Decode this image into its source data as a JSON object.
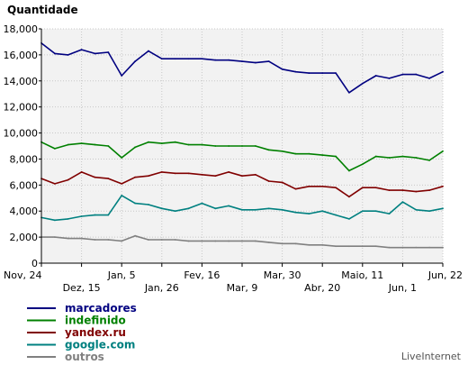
{
  "chart_data": {
    "type": "line",
    "title": "Quantidade",
    "xlabel": "",
    "ylabel": "",
    "ylim": [
      0,
      18000
    ],
    "yticks": [
      0,
      2000,
      4000,
      6000,
      8000,
      10000,
      12000,
      14000,
      16000,
      18000
    ],
    "ytick_labels": [
      "0",
      "2,000",
      "4,000",
      "6,000",
      "8,000",
      "10,000",
      "12,000",
      "14,000",
      "16,000",
      "18,000"
    ],
    "xlim": [
      0,
      30
    ],
    "x_ticks": [
      {
        "x": 0,
        "label": "Nov, 24",
        "row": 0
      },
      {
        "x": 3,
        "label": "Dez, 15",
        "row": 1
      },
      {
        "x": 6,
        "label": "Jan, 5",
        "row": 0
      },
      {
        "x": 9,
        "label": "Jan, 26",
        "row": 1
      },
      {
        "x": 12,
        "label": "Fev, 16",
        "row": 0
      },
      {
        "x": 15,
        "label": "Mar, 9",
        "row": 1
      },
      {
        "x": 18,
        "label": "Mar, 30",
        "row": 0
      },
      {
        "x": 21,
        "label": "Abr, 20",
        "row": 1
      },
      {
        "x": 24,
        "label": "Maio, 11",
        "row": 0
      },
      {
        "x": 27,
        "label": "Jun, 1",
        "row": 1
      },
      {
        "x": 30,
        "label": "Jun, 22",
        "row": 0
      }
    ],
    "grid": true,
    "legend_position": "bottom-left",
    "series": [
      {
        "name": "marcadores",
        "color": "#000080",
        "values": [
          16900,
          16100,
          16000,
          16400,
          16100,
          16200,
          14400,
          15500,
          16300,
          15700,
          15700,
          15700,
          15700,
          15600,
          15600,
          15500,
          15400,
          15500,
          14900,
          14700,
          14600,
          14600,
          14600,
          13100,
          13800,
          14400,
          14200,
          14500,
          14500,
          14200,
          14700
        ]
      },
      {
        "name": "indefinido",
        "color": "#008000",
        "values": [
          9300,
          8800,
          9100,
          9200,
          9100,
          9000,
          8100,
          8900,
          9300,
          9200,
          9300,
          9100,
          9100,
          9000,
          9000,
          9000,
          9000,
          8700,
          8600,
          8400,
          8400,
          8300,
          8200,
          7100,
          7600,
          8200,
          8100,
          8200,
          8100,
          7900,
          8600
        ]
      },
      {
        "name": "yandex.ru",
        "color": "#800000",
        "values": [
          6500,
          6100,
          6400,
          7000,
          6600,
          6500,
          6100,
          6600,
          6700,
          7000,
          6900,
          6900,
          6800,
          6700,
          7000,
          6700,
          6800,
          6300,
          6200,
          5700,
          5900,
          5900,
          5800,
          5100,
          5800,
          5800,
          5600,
          5600,
          5500,
          5600,
          5900
        ]
      },
      {
        "name": "google.com",
        "color": "#008080",
        "values": [
          3500,
          3300,
          3400,
          3600,
          3700,
          3700,
          5200,
          4600,
          4500,
          4200,
          4000,
          4200,
          4600,
          4200,
          4400,
          4100,
          4100,
          4200,
          4100,
          3900,
          3800,
          4000,
          3700,
          3400,
          4000,
          4000,
          3800,
          4700,
          4100,
          4000,
          4200
        ]
      },
      {
        "name": "outros",
        "color": "#808080",
        "values": [
          2000,
          2000,
          1900,
          1900,
          1800,
          1800,
          1700,
          2100,
          1800,
          1800,
          1800,
          1700,
          1700,
          1700,
          1700,
          1700,
          1700,
          1600,
          1500,
          1500,
          1400,
          1400,
          1300,
          1300,
          1300,
          1300,
          1200,
          1200,
          1200,
          1200,
          1200
        ]
      }
    ],
    "credit": "LiveInternet"
  }
}
